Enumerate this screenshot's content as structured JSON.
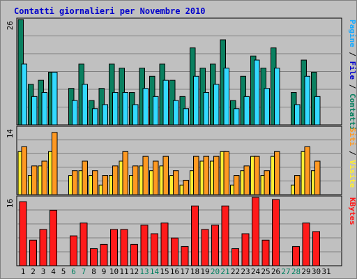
{
  "chart_data": {
    "type": "bar",
    "title": "Contatti giornalieri per Novembre 2010",
    "categories": [
      "1",
      "2",
      "3",
      "4",
      "5",
      "6",
      "7",
      "8",
      "9",
      "10",
      "11",
      "12",
      "13",
      "14",
      "15",
      "16",
      "17",
      "18",
      "19",
      "20",
      "21",
      "22",
      "23",
      "24",
      "25",
      "26",
      "27",
      "28",
      "29",
      "30",
      "31"
    ],
    "weekend_days": [
      6,
      7,
      13,
      14,
      20,
      21,
      27,
      28
    ],
    "colors": {
      "contatti": "#0a8060",
      "file": "#33d9ff",
      "pagine": "#19aaff",
      "siti": "#ffee33",
      "visite": "#ff9922",
      "kbytes": "#ff1a1a",
      "title": "#0000cc",
      "plot_bg": "#c0c0c0",
      "weekend_label": "#008060"
    },
    "panels": [
      {
        "ymax_label": "26",
        "ymax": 26,
        "side_labels": [
          {
            "text": "Pagine",
            "color": "#19aaff"
          },
          {
            "text": " / ",
            "color": "#000000"
          },
          {
            "text": "File",
            "color": "#0000cc"
          },
          {
            "text": " / ",
            "color": "#000000"
          },
          {
            "text": "Contatti",
            "color": "#0a8060"
          }
        ],
        "series": [
          {
            "name": "Contatti",
            "color": "#0a8060",
            "values": [
              26,
              10,
              11,
              13,
              0,
              9,
              15,
              6,
              9,
              15,
              14,
              8,
              14,
              12,
              15,
              11,
              7,
              19,
              14,
              15,
              21,
              6,
              12,
              17,
              14,
              19,
              0,
              8,
              16,
              13,
              0
            ]
          },
          {
            "name": "File",
            "color": "#33d9ff",
            "values": [
              15,
              7,
              8,
              13,
              0,
              6,
              10,
              4,
              5,
              8,
              8,
              5,
              9,
              7,
              11,
              6,
              4,
              12,
              8,
              10,
              14,
              4,
              7,
              16,
              9,
              14,
              0,
              5,
              12,
              7,
              0
            ]
          }
        ]
      },
      {
        "ymax_label": "14",
        "ymax": 14,
        "side_labels": [
          {
            "text": "Siti",
            "color": "#ff9922"
          },
          {
            "text": " / ",
            "color": "#000000"
          },
          {
            "text": "Visite",
            "color": "#ffee33"
          }
        ],
        "series": [
          {
            "name": "Siti",
            "color": "#ffee33",
            "values": [
              9,
              4,
              6,
              9,
              0,
              4,
              5,
              4,
              2,
              4,
              7,
              4,
              6,
              5,
              6,
              4,
              2,
              5,
              7,
              7,
              9,
              2,
              5,
              8,
              4,
              8,
              0,
              2,
              9,
              5,
              0
            ]
          },
          {
            "name": "Visite",
            "color": "#ff9922",
            "values": [
              10,
              6,
              7,
              13,
              0,
              5,
              7,
              5,
              4,
              6,
              9,
              6,
              8,
              7,
              8,
              5,
              3,
              8,
              8,
              8,
              9,
              4,
              6,
              8,
              5,
              9,
              0,
              4,
              10,
              7,
              0
            ]
          }
        ]
      },
      {
        "ymax_label": "16",
        "ymax": 16,
        "side_labels": [
          {
            "text": "KBytes",
            "color": "#ff1a1a"
          }
        ],
        "series": [
          {
            "name": "KBytes",
            "color": "#ff1a1a",
            "values": [
              15,
              6,
              8.5,
              13,
              0,
              7,
              10,
              4,
              5,
              8.5,
              8.5,
              5,
              9.5,
              7.5,
              10,
              6.5,
              4.5,
              14,
              8.5,
              9.5,
              14,
              4,
              7.5,
              16,
              6,
              15.5,
              0,
              4.5,
              10,
              8,
              0
            ]
          }
        ]
      }
    ]
  }
}
